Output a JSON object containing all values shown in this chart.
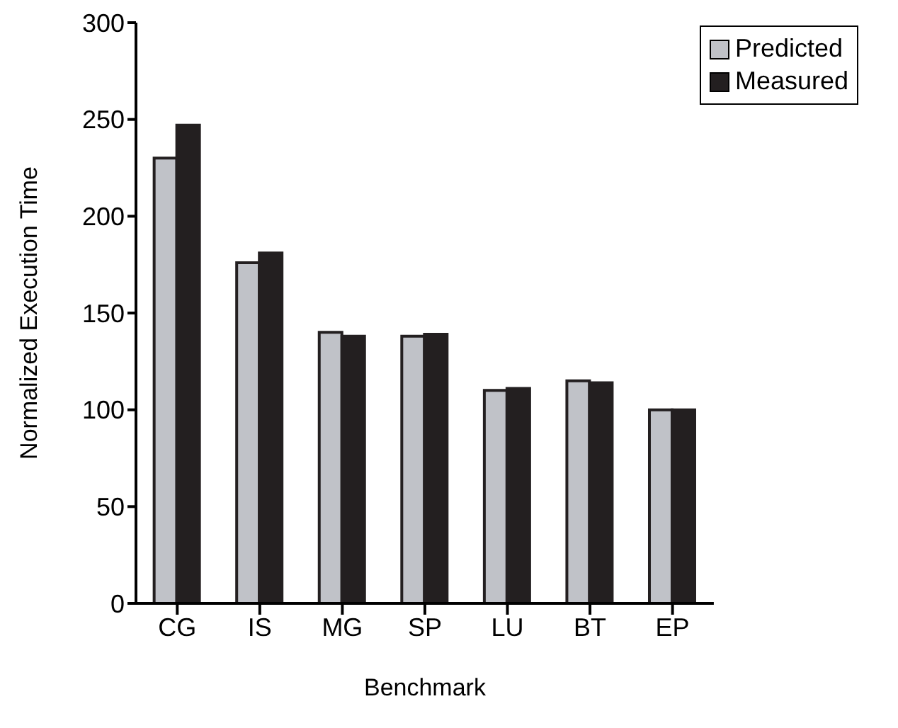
{
  "chart_data": {
    "type": "bar",
    "xlabel": "Benchmark",
    "ylabel": "Normalized Execution Time",
    "categories": [
      "CG",
      "IS",
      "MG",
      "SP",
      "LU",
      "BT",
      "EP"
    ],
    "series": [
      {
        "name": "Predicted",
        "color": "#c0c2c8",
        "values": [
          230,
          176,
          140,
          138,
          110,
          115,
          100
        ]
      },
      {
        "name": "Measured",
        "color": "#231f20",
        "values": [
          247,
          181,
          138,
          139,
          111,
          114,
          100
        ]
      }
    ],
    "ylim": [
      0,
      300
    ],
    "yticks": [
      0,
      50,
      100,
      150,
      200,
      250,
      300
    ],
    "grid": false,
    "legend": "top right"
  }
}
